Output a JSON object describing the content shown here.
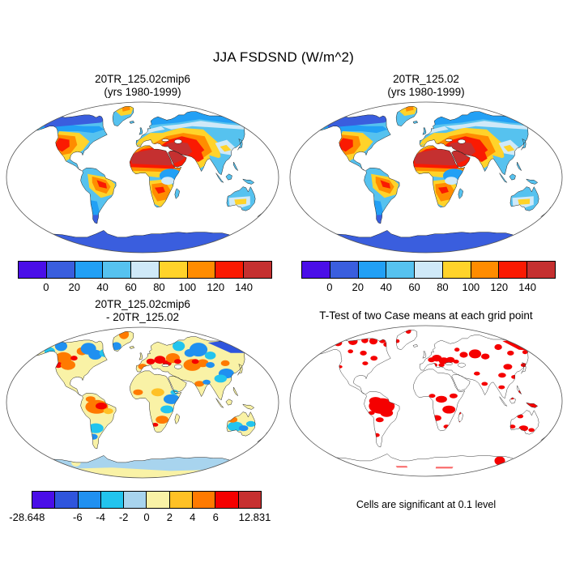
{
  "chart_data": {
    "type": "heatmap",
    "subtype": "global-climate-map-comparison",
    "title": "JJA FSDSND (W/m^2)",
    "projection": "robinson-like ellipse, white ocean",
    "panels": [
      {
        "id": "top-left",
        "title_lines": [
          "20TR_125.02cmip6",
          "(yrs 1980-1999)"
        ],
        "colorbar": {
          "colors": [
            "#4a0ee8",
            "#3a5ede",
            "#22a0f5",
            "#56c2ef",
            "#cfe9f8",
            "#ffd32a",
            "#ff8c00",
            "#fa1a02",
            "#c53030"
          ],
          "ticks": [
            "0",
            "20",
            "40",
            "60",
            "80",
            "100",
            "120",
            "140"
          ],
          "units": "W/m^2"
        },
        "regions_summary": "Sahara/Middle East/central Asia >140; western US and Amazon core 120-140; mid-latitudes 80-120; high-latitude N America and Siberia 20-60; Antarctica 0-20"
      },
      {
        "id": "top-right",
        "title_lines": [
          "20TR_125.02",
          "(yrs 1980-1999)"
        ],
        "colorbar": {
          "colors": [
            "#4a0ee8",
            "#3a5ede",
            "#22a0f5",
            "#56c2ef",
            "#cfe9f8",
            "#ffd32a",
            "#ff8c00",
            "#fa1a02",
            "#c53030"
          ],
          "ticks": [
            "0",
            "20",
            "40",
            "60",
            "80",
            "100",
            "120",
            "140"
          ],
          "units": "W/m^2"
        },
        "regions_summary": "visually near-identical distribution to top-left panel"
      },
      {
        "id": "bottom-left",
        "title_lines": [
          "20TR_125.02cmip6",
          "- 20TR_125.02"
        ],
        "colorbar": {
          "colors": [
            "#4a0ee8",
            "#2f55dd",
            "#2090f0",
            "#22c4ee",
            "#a8d4ee",
            "#f9f2a6",
            "#ffc125",
            "#ff7a00",
            "#f50000",
            "#c73030"
          ],
          "ticks": [
            "-28.648",
            "-6",
            "-4",
            "-2",
            "0",
            "2",
            "4",
            "6",
            "12.831"
          ],
          "min": -28.648,
          "max": 12.831,
          "units": "W/m^2"
        },
        "regions_summary": "mostly -2..2 (pale yellow); NE Siberia strong negative (< -6); scattered positive 2-6 over western N America, Europe, Kazakhstan, Amazon, Africa; Antarctica -2..0"
      },
      {
        "id": "bottom-right",
        "title": "T-Test of two Case means at each grid point",
        "caption": "Cells are significant at 0.1 level",
        "significance_color": "#f50000",
        "regions_summary": "red significant cells over Arctic N America, Amazon, Europe, central Russia, NE Siberia, central/southern Africa, SE Australia, parts of Antarctica"
      }
    ]
  }
}
